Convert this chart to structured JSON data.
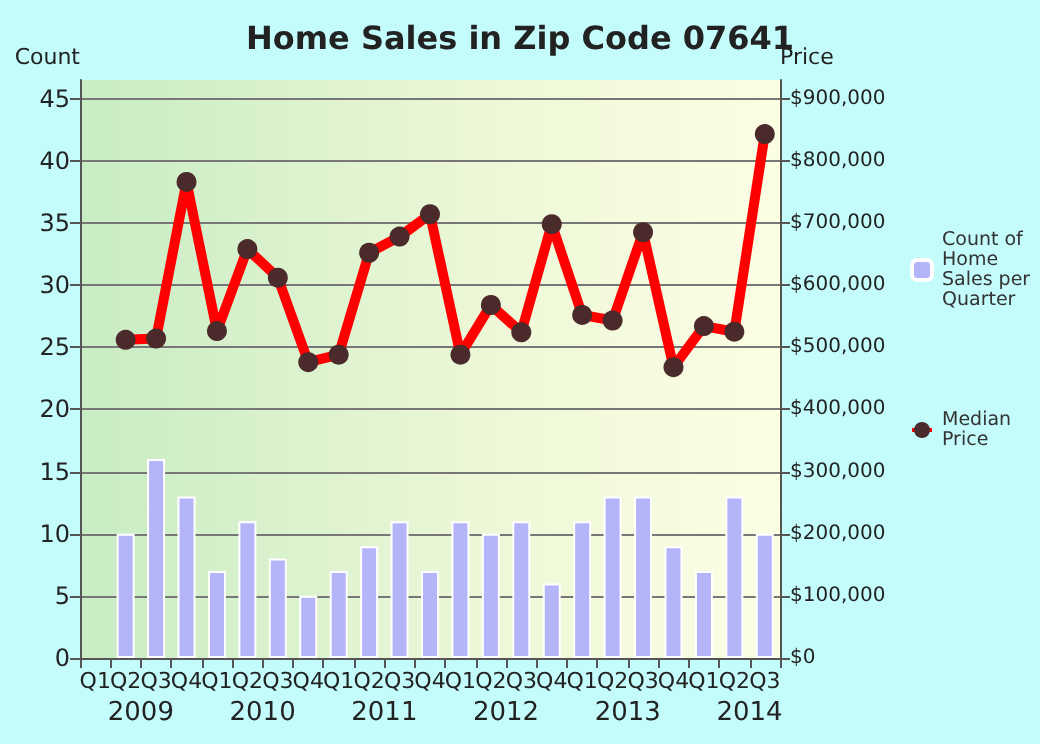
{
  "chart_data": {
    "type": "bar",
    "title": "Home Sales in Zip Code 07641",
    "ylabel": "Count",
    "y2label": "Price",
    "categories": [
      "Q1",
      "Q2",
      "Q3",
      "Q4",
      "Q1",
      "Q2",
      "Q3",
      "Q4",
      "Q1",
      "Q2",
      "Q3",
      "Q4",
      "Q1",
      "Q2",
      "Q3",
      "Q4",
      "Q1",
      "Q2",
      "Q3",
      "Q4",
      "Q1",
      "Q2",
      "Q3"
    ],
    "annotations": [
      "2009",
      "2010",
      "2011",
      "2012",
      "2013",
      "2014"
    ],
    "series": [
      {
        "name": "Count of Home Sales per Quarter",
        "color": "#b4b4f8",
        "values": [
          null,
          10,
          16,
          13,
          7,
          11,
          8,
          5,
          7,
          9,
          11,
          7,
          11,
          10,
          11,
          6,
          11,
          13,
          13,
          9,
          7,
          13,
          10
        ]
      },
      {
        "name": "Median Price",
        "type": "line",
        "axis": "y2",
        "color": "#ff0000",
        "marker": "circle",
        "values": [
          null,
          512000,
          514000,
          766000,
          526000,
          658000,
          612000,
          476000,
          488000,
          652000,
          678000,
          714000,
          488000,
          568000,
          524000,
          698000,
          552000,
          543000,
          685000,
          468000,
          534000,
          525000,
          843000
        ]
      }
    ],
    "ylim": [
      0,
      46.5
    ],
    "yticks": [
      0,
      5,
      10,
      15,
      20,
      25,
      30,
      35,
      40,
      45
    ],
    "y2lim": [
      0,
      930000
    ],
    "y2ticks": [
      {
        "value": 0,
        "label": "$0"
      },
      {
        "value": 100000,
        "label": "$100,000"
      },
      {
        "value": 200000,
        "label": "$200,000"
      },
      {
        "value": 300000,
        "label": "$300,000"
      },
      {
        "value": 400000,
        "label": "$400,000"
      },
      {
        "value": 500000,
        "label": "$500,000"
      },
      {
        "value": 600000,
        "label": "$600,000"
      },
      {
        "value": 700000,
        "label": "$700,000"
      },
      {
        "value": 800000,
        "label": "$800,000"
      },
      {
        "value": 900000,
        "label": "$900,000"
      }
    ],
    "grid": "y",
    "legend": "right"
  }
}
